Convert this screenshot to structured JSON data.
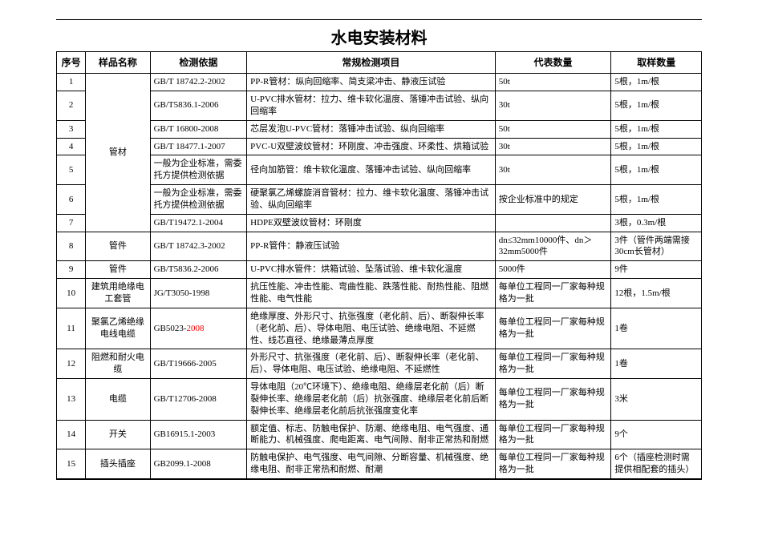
{
  "title": "水电安装材料",
  "headers": {
    "xuhao": "序号",
    "name": "样品名称",
    "yiju": "检测依据",
    "xiangmu": "常规检测项目",
    "daibiao": "代表数量",
    "quyang": "取样数量"
  },
  "merged_name_1_7": "管材",
  "rows": [
    {
      "idx": "1",
      "name": "",
      "yiju": "GB/T 18742.2-2002",
      "xiangmu": "PP-R管材：纵向回缩率、简支梁冲击、静液压试验",
      "daibiao": "50t",
      "quyang": "5根，1m/根"
    },
    {
      "idx": "2",
      "name": "",
      "yiju": "GB/T5836.1-2006",
      "xiangmu": "U-PVC排水管材：拉力、维卡软化温度、落锤冲击试验、纵向回缩率",
      "daibiao": "30t",
      "quyang": "5根，1m/根"
    },
    {
      "idx": "3",
      "name": "",
      "yiju": "GB/T 16800-2008",
      "xiangmu": "芯层发泡U-PVC管材：落锤冲击试验、纵向回缩率",
      "daibiao": "50t",
      "quyang": "5根，1m/根"
    },
    {
      "idx": "4",
      "name": "",
      "yiju": "GB/T 18477.1-2007",
      "xiangmu": "PVC-U双壁波纹管材：环刚度、冲击强度、环柔性、烘箱试验",
      "daibiao": "30t",
      "quyang": "5根，1m/根"
    },
    {
      "idx": "5",
      "name": "",
      "yiju": "一般为企业标准，需委托方提供检测依据",
      "xiangmu": "径向加筋管：维卡软化温度、落锤冲击试验、纵向回缩率",
      "daibiao": "30t",
      "quyang": "5根，1m/根"
    },
    {
      "idx": "6",
      "name": "",
      "yiju": "一般为企业标准，需委托方提供检测依据",
      "xiangmu": "硬聚氯乙烯螺旋消音管材：拉力、维卡软化温度、落锤冲击试验、纵向回缩率",
      "daibiao": "按企业标准中的规定",
      "quyang": "5根，1m/根"
    },
    {
      "idx": "7",
      "name": "",
      "yiju": "GB/T19472.1-2004",
      "xiangmu": "HDPE双壁波纹管材：环刚度",
      "daibiao": "",
      "quyang": "3根，0.3m/根"
    },
    {
      "idx": "8",
      "name": "管件",
      "yiju": "GB/T 18742.3-2002",
      "xiangmu": "PP-R管件：静液压试验",
      "daibiao": "dn≤32mm10000件、dn＞32mm5000件",
      "quyang": "3件（管件两端需接30cm长管材）"
    },
    {
      "idx": "9",
      "name": "管件",
      "yiju": "GB/T5836.2-2006",
      "xiangmu": "U-PVC排水管件：烘箱试验、坠落试验、维卡软化温度",
      "daibiao": "5000件",
      "quyang": "9件"
    },
    {
      "idx": "10",
      "name": "建筑用绝缘电工套管",
      "yiju": "JG/T3050-1998",
      "xiangmu": "抗压性能、冲击性能、弯曲性能、跌落性能、耐热性能、阻燃性能、电气性能",
      "daibiao": "每单位工程同一厂家每种规格为一批",
      "quyang": "12根，1.5m/根"
    },
    {
      "idx": "11",
      "name": "聚氯乙烯绝缘电线电缆",
      "yiju_pre": "GB5023-",
      "yiju_red": "2008",
      "xiangmu": "绝缘厚度、外形尺寸、抗张强度（老化前、后）、断裂伸长率（老化前、后）、导体电阻、电压试验、绝缘电阻、不延燃性、线芯直径、绝缘最薄点厚度",
      "daibiao": "每单位工程同一厂家每种规格为一批",
      "quyang": "1卷"
    },
    {
      "idx": "12",
      "name": "阻燃和耐火电缆",
      "yiju": "GB/T19666-2005",
      "xiangmu": "外形尺寸、抗张强度（老化前、后）、断裂伸长率（老化前、后）、导体电阻、电压试验、绝缘电阻、不延燃性",
      "daibiao": "每单位工程同一厂家每种规格为一批",
      "quyang": "1卷"
    },
    {
      "idx": "13",
      "name": "电缆",
      "yiju": "GB/T12706-2008",
      "xiangmu": "导体电阻（20℃环境下）、绝缘电阻、绝缘层老化前（后）断裂伸长率、绝缘层老化前（后）抗张强度、绝缘层老化前后断裂伸长率、绝缘层老化前后抗张强度变化率",
      "daibiao": "每单位工程同一厂家每种规格为一批",
      "quyang": "3米"
    },
    {
      "idx": "14",
      "name": "开关",
      "yiju": "GB16915.1-2003",
      "xiangmu": "额定值、标志、防触电保护、防潮、绝缘电阻、电气强度、通断能力、机械强度、爬电距离、电气间隙、耐非正常热和耐燃",
      "daibiao": "每单位工程同一厂家每种规格为一批",
      "quyang": "9个"
    },
    {
      "idx": "15",
      "name": "插头插座",
      "yiju": "GB2099.1-2008",
      "xiangmu": "防触电保护、电气强度、电气间隙、分断容量、机械强度、绝缘电阻、耐非正常热和耐燃、耐潮",
      "daibiao": "每单位工程同一厂家每种规格为一批",
      "quyang": "6个（插座检测时需提供相配套的插头）"
    }
  ]
}
